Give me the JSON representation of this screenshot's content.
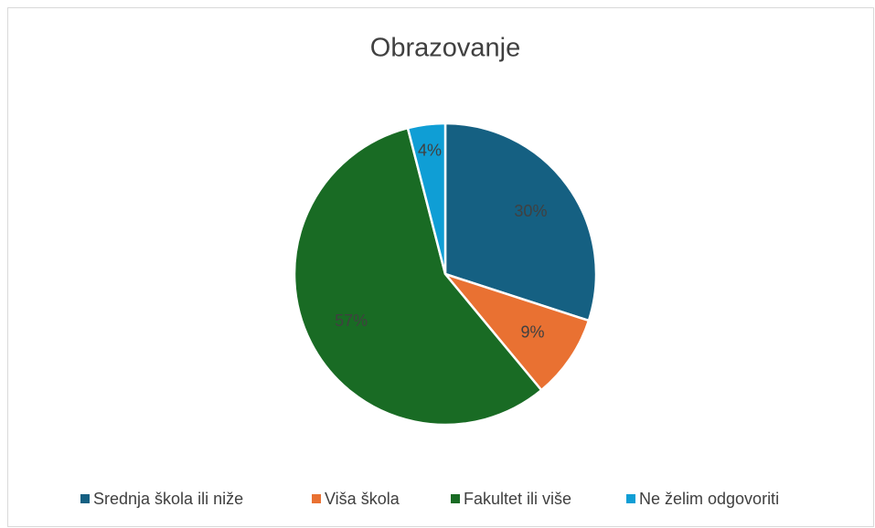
{
  "chart_data": {
    "type": "pie",
    "title": "Obrazovanje",
    "categories": [
      "Srednja škola ili niže",
      "Viša škola",
      "Fakultet ili više",
      "Ne želim odgovoriti"
    ],
    "values": [
      30,
      9,
      57,
      4
    ],
    "value_labels": [
      "30%",
      "9%",
      "57%",
      "4%"
    ],
    "colors": [
      "#156082",
      "#e97132",
      "#196b24",
      "#0f9ed5"
    ],
    "legend": "bottom"
  }
}
